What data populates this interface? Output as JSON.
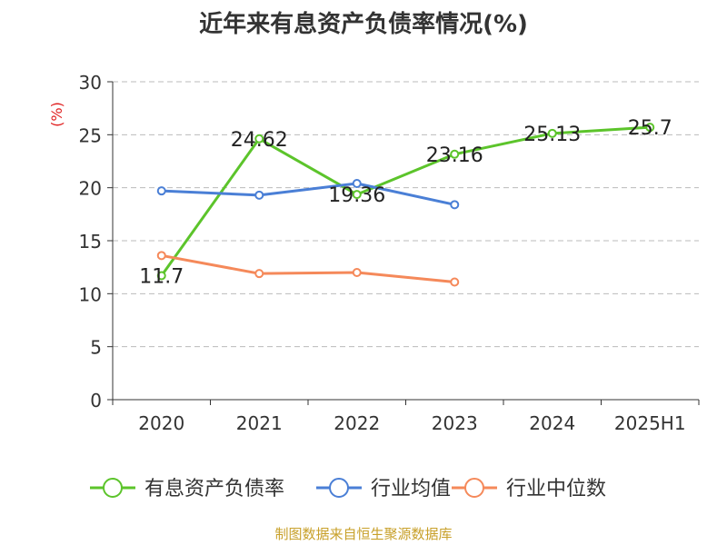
{
  "chart_data": {
    "type": "line",
    "title": "近年来有息资产负债率情况(%)",
    "ylabel": "(%)",
    "xlabel": "",
    "categories": [
      "2020",
      "2021",
      "2022",
      "2023",
      "2024",
      "2025H1"
    ],
    "ylim": [
      0,
      30
    ],
    "yticks": [
      0,
      5,
      10,
      15,
      20,
      25,
      30
    ],
    "grid": true,
    "legend_position": "bottom",
    "series": [
      {
        "name": "有息资产负债率",
        "color": "#5cc42b",
        "values": [
          11.7,
          24.62,
          19.36,
          23.16,
          25.13,
          25.7
        ],
        "labels": [
          "11.7",
          "24.62",
          "19.36",
          "23.16",
          "25.13",
          "25.7"
        ]
      },
      {
        "name": "行业均值",
        "color": "#4a7fd6",
        "values": [
          19.7,
          19.3,
          20.4,
          18.4,
          null,
          null
        ]
      },
      {
        "name": "行业中位数",
        "color": "#f5895a",
        "values": [
          13.6,
          11.9,
          12.0,
          11.1,
          null,
          null
        ]
      }
    ]
  },
  "footer": {
    "source": "制图数据来自恒生聚源数据库"
  },
  "colors": {
    "axis": "#333333",
    "grid": "#bbbbbb",
    "ylabel": "#e02020",
    "source": "#c8a02a"
  }
}
